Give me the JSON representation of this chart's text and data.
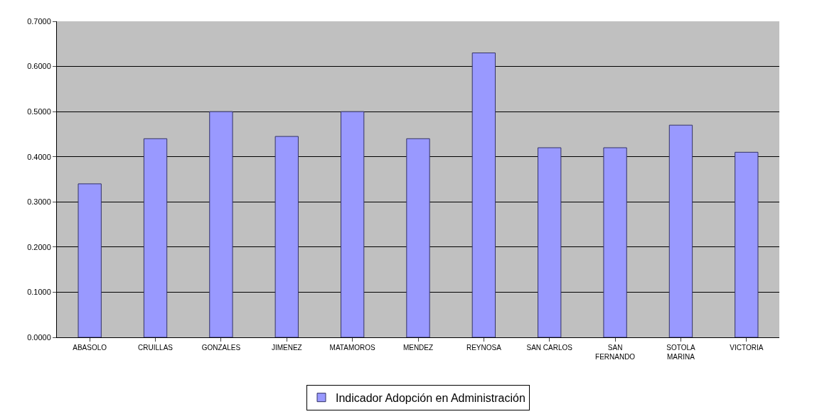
{
  "chart_data": {
    "type": "bar",
    "categories": [
      "ABASOLO",
      "CRUILLAS",
      "GONZALES",
      "JIMENEZ",
      "MATAMOROS",
      "MENDEZ",
      "REYNOSA",
      "SAN CARLOS",
      "SAN FERNANDO",
      "SOTOLA MARINA",
      "VICTORIA"
    ],
    "series": [
      {
        "name": "Indicador Adopción en Administración",
        "color": "#9999ff",
        "values": [
          0.34,
          0.44,
          0.5,
          0.445,
          0.5,
          0.44,
          0.63,
          0.42,
          0.42,
          0.47,
          0.41
        ]
      }
    ],
    "ylim": [
      0,
      0.7
    ],
    "yticks": [
      {
        "value": 0,
        "label": "0.0000"
      },
      {
        "value": 0.1,
        "label": "0.1000"
      },
      {
        "value": 0.2,
        "label": "0.2000"
      },
      {
        "value": 0.3,
        "label": "0.3000"
      },
      {
        "value": 0.4,
        "label": "0.4000"
      },
      {
        "value": 0.5,
        "label": "0.5000"
      },
      {
        "value": 0.6,
        "label": "0.6000"
      },
      {
        "value": 0.7,
        "label": "0.7000"
      }
    ],
    "grid": "y",
    "legend": "bottom"
  }
}
